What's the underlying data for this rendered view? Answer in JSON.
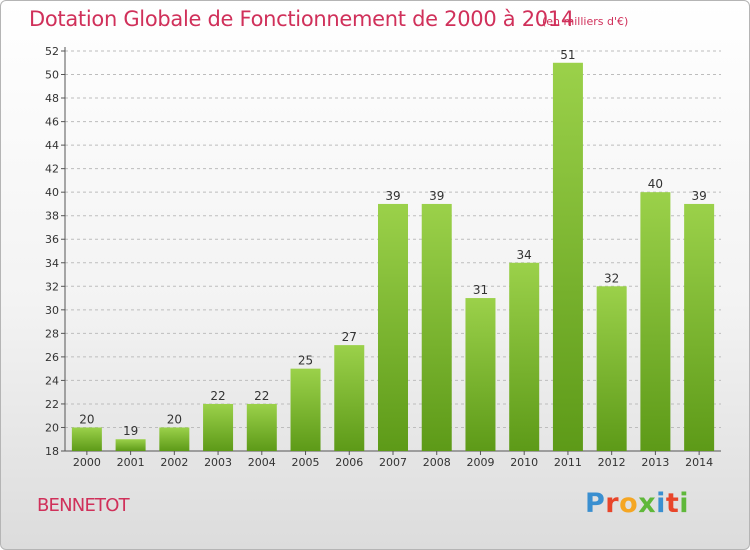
{
  "title": "Dotation Globale de Fonctionnement de 2000 à 2014",
  "unit_note": "(en milliers d'€)",
  "place_name": "BENNETOT",
  "logo": {
    "text": "Proxiti",
    "letters": [
      "P",
      "r",
      "o",
      "x",
      "i",
      "t",
      "i"
    ],
    "letter_colors": [
      "#3a8fd0",
      "#e8452a",
      "#f5a623",
      "#5fb83a",
      "#3a8fd0",
      "#e8452a",
      "#5fb83a"
    ]
  },
  "colors": {
    "accent": "#d0305a",
    "bar_top": "#9bd14a",
    "bar_bottom": "#5d9a18",
    "grid": "#bdbdbd"
  },
  "chart_data": {
    "type": "bar",
    "title": "Dotation Globale de Fonctionnement de 2000 à 2014",
    "subtitle": "(en milliers d'€)",
    "categories": [
      "2000",
      "2001",
      "2002",
      "2003",
      "2004",
      "2005",
      "2006",
      "2007",
      "2008",
      "2009",
      "2010",
      "2011",
      "2012",
      "2013",
      "2014"
    ],
    "values": [
      20,
      19,
      20,
      22,
      22,
      25,
      27,
      39,
      39,
      31,
      34,
      51,
      32,
      40,
      39
    ],
    "ylim": [
      18,
      52
    ],
    "yticks": [
      18,
      20,
      22,
      24,
      26,
      28,
      30,
      32,
      34,
      36,
      38,
      40,
      42,
      44,
      46,
      48,
      50,
      52
    ],
    "grid": "horizontal dashed",
    "xlabel": "",
    "ylabel": ""
  }
}
